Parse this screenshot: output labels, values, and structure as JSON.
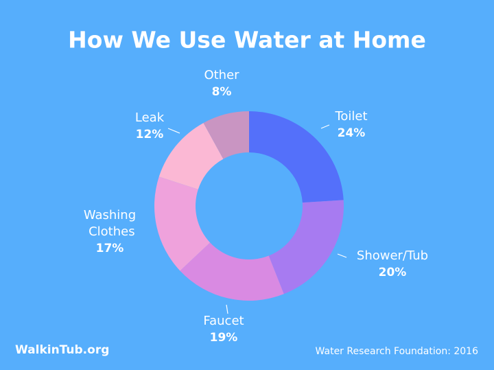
{
  "chart_data": {
    "type": "donut",
    "title": "How We Use Water at Home",
    "categories": [
      "Toilet",
      "Shower/Tub",
      "Faucet",
      "Washing Clothes",
      "Leak",
      "Other"
    ],
    "values": [
      24,
      20,
      19,
      17,
      12,
      8
    ],
    "value_labels": [
      "24%",
      "20%",
      "19%",
      "17%",
      "12%",
      "8%"
    ],
    "colors": [
      "#5470fa",
      "#a77bf1",
      "#d98ae2",
      "#efa2dc",
      "#fbb8d4",
      "#c995c2"
    ],
    "brand": "WalkinTub.org",
    "source": "Water Research Foundation: 2016"
  }
}
